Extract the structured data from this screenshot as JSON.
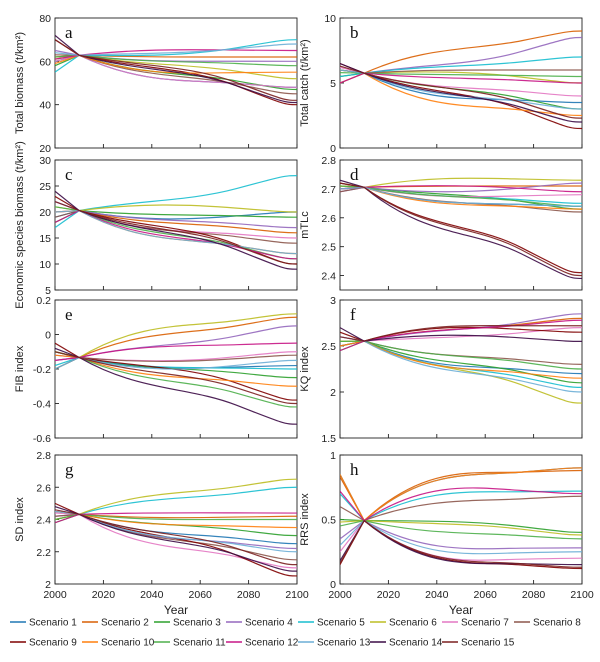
{
  "colors": [
    "#1f77b4",
    "#d95f02",
    "#2ca02c",
    "#9467bd",
    "#17becf",
    "#bcbd22",
    "#e377c2",
    "#8c564b",
    "#7f0000",
    "#ff7f0e",
    "#4daf4a",
    "#c71585",
    "#6baed6",
    "#3b0a45",
    "#7a1f1f"
  ],
  "legend": [
    "Scenario 1",
    "Scenario 2",
    "Scenario 3",
    "Scenario 4",
    "Scenario 5",
    "Scenario 6",
    "Scenario 7",
    "Scenario 8",
    "Scenario 9",
    "Scenario 10",
    "Scenario 11",
    "Scenario 12",
    "Scenario 13",
    "Scenario 14",
    "Scenario 15"
  ],
  "xlabel": "Year",
  "xticks": [
    "2000",
    "2020",
    "2040",
    "2060",
    "2080",
    "2100"
  ],
  "chart_data": [
    {
      "type": "line",
      "panel_label": "a",
      "ylabel": "Total biomass (t/km²)",
      "ylim": [
        20,
        80
      ],
      "yticks": [
        "20",
        "40",
        "60",
        "80"
      ],
      "x": [
        2000,
        2010,
        2100
      ],
      "series_start": [
        60,
        62,
        58,
        65,
        55,
        61,
        60,
        63,
        70,
        59,
        62,
        61,
        64,
        72,
        70
      ],
      "series_end": [
        48,
        62,
        47,
        60,
        70,
        52,
        48,
        45,
        40,
        55,
        58,
        65,
        68,
        41,
        42
      ]
    },
    {
      "type": "line",
      "panel_label": "b",
      "ylabel": "Total catch (t/km²)",
      "ylim": [
        0,
        10
      ],
      "yticks": [
        "0",
        "5",
        "10"
      ],
      "x": [
        2000,
        2010,
        2100
      ],
      "series_start": [
        5,
        6,
        5.5,
        5,
        5.5,
        6,
        6.2,
        6,
        6.5,
        5,
        5.8,
        5,
        6,
        6.5,
        6.3
      ],
      "series_end": [
        3.5,
        9,
        3,
        8.5,
        7,
        5,
        4,
        6,
        1.5,
        2.5,
        5.5,
        5,
        3,
        2,
        2.3
      ]
    },
    {
      "type": "line",
      "panel_label": "c",
      "ylabel": "Economic species biomass (t/km²)",
      "ylim": [
        5,
        30
      ],
      "yticks": [
        "5",
        "10",
        "15",
        "20",
        "25",
        "30"
      ],
      "x": [
        2000,
        2010,
        2100
      ],
      "series_start": [
        19,
        20,
        18,
        22,
        17,
        21,
        20,
        19,
        23,
        20,
        21,
        18,
        20,
        24,
        22
      ],
      "series_end": [
        20,
        16,
        19,
        17,
        27,
        20,
        15,
        14,
        10,
        12,
        11,
        11,
        12,
        9,
        10
      ]
    },
    {
      "type": "line",
      "panel_label": "d",
      "ylabel": "mTLc",
      "ylim": [
        2.35,
        2.8
      ],
      "yticks": [
        "2.4",
        "2.5",
        "2.6",
        "2.7",
        "2.8"
      ],
      "x": [
        2000,
        2010,
        2100
      ],
      "series_start": [
        2.7,
        2.71,
        2.7,
        2.69,
        2.7,
        2.71,
        2.7,
        2.69,
        2.72,
        2.7,
        2.71,
        2.7,
        2.7,
        2.73,
        2.72
      ],
      "series_end": [
        2.64,
        2.71,
        2.63,
        2.72,
        2.65,
        2.73,
        2.68,
        2.62,
        2.41,
        2.63,
        2.64,
        2.69,
        2.64,
        2.39,
        2.4
      ]
    },
    {
      "type": "line",
      "panel_label": "e",
      "ylabel": "FIB index",
      "ylim": [
        -0.6,
        0.2
      ],
      "yticks": [
        "-0.6",
        "-0.4",
        "-0.2",
        "0",
        "0.2"
      ],
      "x": [
        2000,
        2010,
        2100
      ],
      "series_start": [
        -0.15,
        -0.1,
        -0.2,
        -0.12,
        -0.18,
        -0.1,
        -0.15,
        -0.2,
        -0.05,
        -0.12,
        -0.1,
        -0.15,
        -0.2,
        -0.08,
        -0.1
      ],
      "series_end": [
        -0.18,
        0.1,
        -0.25,
        0.05,
        -0.2,
        0.12,
        -0.1,
        -0.12,
        -0.38,
        -0.3,
        -0.42,
        -0.05,
        -0.15,
        -0.52,
        -0.4
      ]
    },
    {
      "type": "line",
      "panel_label": "f",
      "ylabel": "KQ index",
      "ylim": [
        1.5,
        3
      ],
      "yticks": [
        "1.5",
        "2",
        "2.5",
        "3"
      ],
      "x": [
        2000,
        2010,
        2100
      ],
      "series_start": [
        2.5,
        2.55,
        2.45,
        2.6,
        2.5,
        2.55,
        2.6,
        2.5,
        2.65,
        2.5,
        2.55,
        2.45,
        2.6,
        2.7,
        2.6
      ],
      "series_end": [
        2.2,
        2.8,
        2.1,
        2.85,
        2.05,
        1.88,
        2.7,
        2.3,
        2.65,
        2.15,
        2.25,
        2.78,
        2.0,
        2.55,
        2.72
      ]
    },
    {
      "type": "line",
      "panel_label": "g",
      "ylabel": "SD index",
      "ylim": [
        2,
        2.8
      ],
      "yticks": [
        "2",
        "2.2",
        "2.4",
        "2.6",
        "2.8"
      ],
      "x": [
        2000,
        2010,
        2100
      ],
      "series_start": [
        2.45,
        2.4,
        2.38,
        2.42,
        2.45,
        2.4,
        2.44,
        2.42,
        2.5,
        2.45,
        2.4,
        2.38,
        2.45,
        2.48,
        2.46
      ],
      "series_end": [
        2.25,
        2.42,
        2.3,
        2.22,
        2.6,
        2.65,
        2.1,
        2.15,
        2.05,
        2.35,
        2.4,
        2.44,
        2.2,
        2.08,
        2.12
      ]
    },
    {
      "type": "line",
      "panel_label": "h",
      "ylabel": "RRS index",
      "ylim": [
        0,
        1
      ],
      "yticks": [
        "0",
        "0.5",
        "1"
      ],
      "x": [
        2000,
        2010,
        2100
      ],
      "series_start": [
        0.85,
        0.83,
        0.5,
        0.35,
        0.7,
        0.48,
        0.25,
        0.6,
        0.15,
        0.85,
        0.45,
        0.72,
        0.3,
        0.18,
        0.16
      ],
      "series_end": [
        0.9,
        0.88,
        0.4,
        0.28,
        0.72,
        0.38,
        0.2,
        0.68,
        0.12,
        0.9,
        0.35,
        0.7,
        0.25,
        0.15,
        0.13
      ]
    }
  ]
}
